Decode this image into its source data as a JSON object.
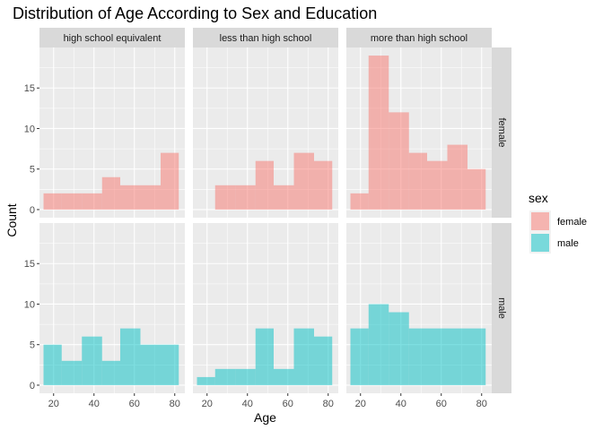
{
  "chart_data": {
    "type": "histogram",
    "title": "Distribution of Age According to Sex and Education",
    "xlabel": "Age",
    "ylabel": "Count",
    "xlim": [
      13,
      85
    ],
    "ylim": [
      -1,
      20
    ],
    "x_ticks": [
      20,
      40,
      60,
      80
    ],
    "y_ticks": [
      0,
      5,
      10,
      15
    ],
    "grid": true,
    "bins": [
      [
        15,
        24
      ],
      [
        24,
        34
      ],
      [
        34,
        44
      ],
      [
        44,
        53
      ],
      [
        53,
        63
      ],
      [
        63,
        73
      ],
      [
        73,
        82
      ]
    ],
    "column_facets": [
      "high school equivalent",
      "less than high school",
      "more than high school"
    ],
    "row_facets": [
      "female",
      "male"
    ],
    "legend": {
      "title": "sex",
      "placement": "right",
      "entries": [
        {
          "label": "female",
          "color": "#F8766D"
        },
        {
          "label": "male",
          "color": "#00BFC4"
        }
      ]
    },
    "panels": [
      {
        "education": "high school equivalent",
        "sex": "female",
        "counts": [
          2,
          2,
          2,
          4,
          3,
          3,
          7
        ]
      },
      {
        "education": "less than high school",
        "sex": "female",
        "counts": [
          0,
          3,
          3,
          6,
          3,
          7,
          6
        ]
      },
      {
        "education": "more than high school",
        "sex": "female",
        "counts": [
          2,
          19,
          12,
          7,
          6,
          8,
          5
        ]
      },
      {
        "education": "high school equivalent",
        "sex": "male",
        "counts": [
          5,
          3,
          6,
          3,
          7,
          5,
          5
        ]
      },
      {
        "education": "less than high school",
        "sex": "male",
        "counts": [
          1,
          2,
          2,
          7,
          2,
          7,
          6
        ]
      },
      {
        "education": "more than high school",
        "sex": "male",
        "counts": [
          7,
          10,
          9,
          7,
          7,
          7,
          7
        ]
      }
    ]
  }
}
